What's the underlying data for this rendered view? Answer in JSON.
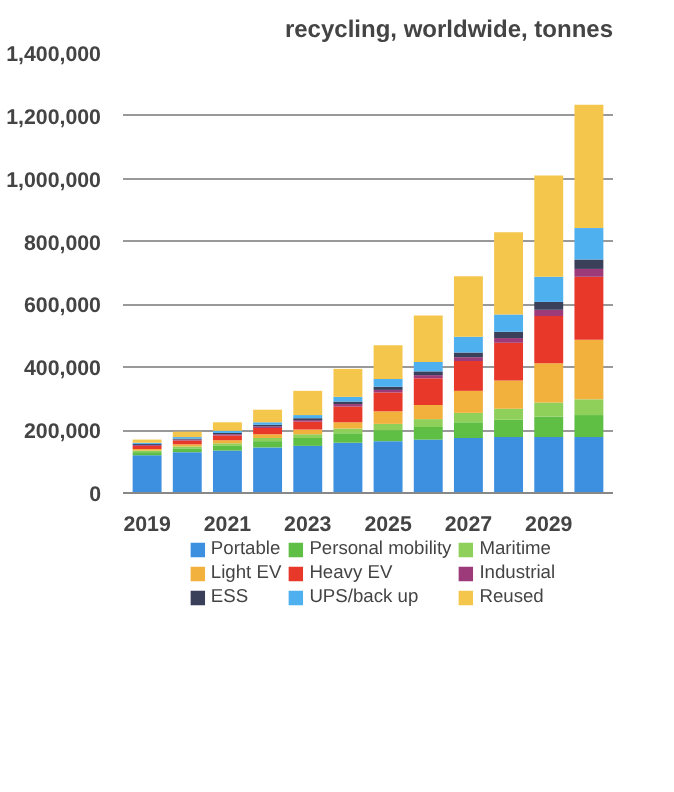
{
  "chart_data": {
    "type": "bar",
    "stacked": true,
    "title": "recycling, worldwide, tonnes",
    "categories": [
      "2019",
      null,
      "2021",
      null,
      "2023",
      null,
      "2025",
      null,
      "2027",
      null,
      "2029",
      null
    ],
    "series": [
      {
        "name": "Portable",
        "color": "#3d8fe0",
        "values": [
          120000,
          130000,
          135000,
          145000,
          150000,
          160000,
          165000,
          170000,
          175000,
          178000,
          178000,
          178000
        ]
      },
      {
        "name": "Personal mobility",
        "color": "#5fbf45",
        "values": [
          10000,
          12000,
          15000,
          20000,
          25000,
          30000,
          35000,
          40000,
          50000,
          55000,
          65000,
          70000
        ]
      },
      {
        "name": "Maritime",
        "color": "#8fd05a",
        "values": [
          5000,
          6000,
          8000,
          10000,
          12000,
          15000,
          20000,
          25000,
          30000,
          35000,
          45000,
          50000
        ]
      },
      {
        "name": "Light EV",
        "color": "#f2b03c",
        "values": [
          5000,
          7000,
          10000,
          12000,
          15000,
          20000,
          40000,
          45000,
          70000,
          90000,
          125000,
          190000
        ]
      },
      {
        "name": "Heavy EV",
        "color": "#e8382a",
        "values": [
          10000,
          12000,
          15000,
          20000,
          25000,
          50000,
          60000,
          85000,
          95000,
          120000,
          150000,
          200000
        ]
      },
      {
        "name": "Industrial",
        "color": "#9c3a7a",
        "values": [
          3000,
          3000,
          4000,
          5000,
          5000,
          8000,
          8000,
          10000,
          12000,
          15000,
          20000,
          25000
        ]
      },
      {
        "name": "ESS",
        "color": "#3a3f5a",
        "values": [
          3000,
          3000,
          4000,
          5000,
          6000,
          8000,
          10000,
          12000,
          15000,
          20000,
          25000,
          30000
        ]
      },
      {
        "name": "UPS/back up",
        "color": "#4fb0ef",
        "values": [
          4000,
          5000,
          7000,
          8000,
          10000,
          15000,
          25000,
          30000,
          50000,
          55000,
          80000,
          100000
        ]
      },
      {
        "name": "Reused",
        "color": "#f5c64c",
        "values": [
          10000,
          17000,
          27000,
          40000,
          77000,
          89000,
          107000,
          148000,
          193000,
          262000,
          322000,
          392000
        ]
      }
    ],
    "ylim": [
      0,
      1400000
    ],
    "yticks": [
      0,
      {
        "value": 200000,
        "label": "200,000"
      },
      {
        "value": 400000,
        "label": "400,000"
      },
      {
        "value": 600000,
        "label": "600,000"
      },
      {
        "value": 800000,
        "label": "800,000"
      },
      {
        "value": 1000000,
        "label": "1,000,000"
      },
      {
        "value": 1200000,
        "label": "1,200,000"
      },
      {
        "value": 1400000,
        "label": "1,400,000"
      }
    ],
    "grid": "y",
    "legend": "bottom"
  }
}
